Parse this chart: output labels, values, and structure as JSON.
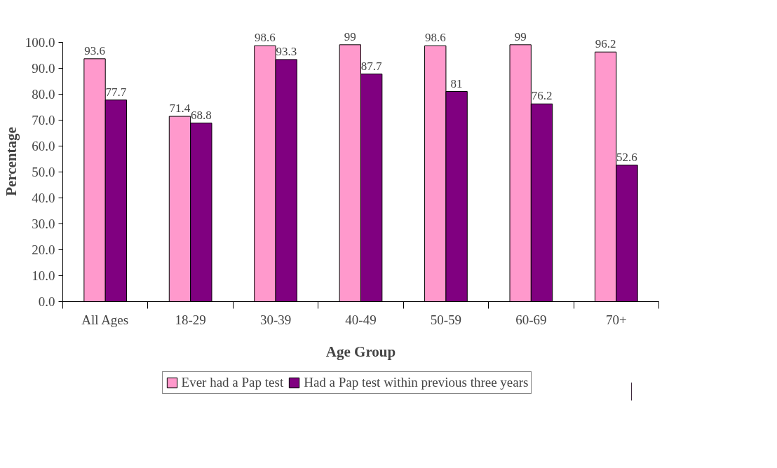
{
  "chart_data": {
    "type": "bar",
    "xlabel": "Age Group",
    "ylabel": "Percentage",
    "categories": [
      "All Ages",
      "18-29",
      "30-39",
      "40-49",
      "50-59",
      "60-69",
      "70+"
    ],
    "series": [
      {
        "name": "Ever had a Pap test",
        "color": "#ff99cc",
        "values": [
          93.6,
          71.4,
          98.6,
          99,
          98.6,
          99,
          96.2
        ]
      },
      {
        "name": "Had a Pap test within previous three years",
        "color": "#800080",
        "values": [
          77.7,
          68.8,
          93.3,
          87.7,
          81,
          76.2,
          52.6
        ]
      }
    ],
    "ylim": [
      0,
      100
    ],
    "yticks": [
      {
        "value": 0,
        "label": "0.0"
      },
      {
        "value": 10,
        "label": "10.0"
      },
      {
        "value": 20,
        "label": "20.0"
      },
      {
        "value": 30,
        "label": "30.0"
      },
      {
        "value": 40,
        "label": "40.0"
      },
      {
        "value": 50,
        "label": "50.0"
      },
      {
        "value": 60,
        "label": "60.0"
      },
      {
        "value": 70,
        "label": "70.0"
      },
      {
        "value": 80,
        "label": "80.0"
      },
      {
        "value": 90,
        "label": "90.0"
      },
      {
        "value": 100,
        "label": "100.0"
      }
    ],
    "data_labels": true,
    "grid": false,
    "legend": "bottom"
  }
}
